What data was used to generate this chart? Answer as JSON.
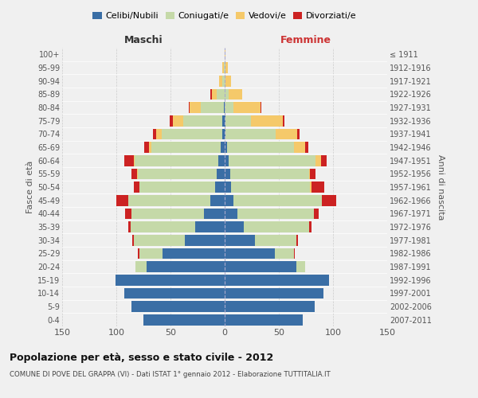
{
  "age_groups": [
    "0-4",
    "5-9",
    "10-14",
    "15-19",
    "20-24",
    "25-29",
    "30-34",
    "35-39",
    "40-44",
    "45-49",
    "50-54",
    "55-59",
    "60-64",
    "65-69",
    "70-74",
    "75-79",
    "80-84",
    "85-89",
    "90-94",
    "95-99",
    "100+"
  ],
  "birth_years": [
    "2007-2011",
    "2002-2006",
    "1997-2001",
    "1992-1996",
    "1987-1991",
    "1982-1986",
    "1977-1981",
    "1972-1976",
    "1967-1971",
    "1962-1966",
    "1957-1961",
    "1952-1956",
    "1947-1951",
    "1942-1946",
    "1937-1941",
    "1932-1936",
    "1927-1931",
    "1922-1926",
    "1917-1921",
    "1912-1916",
    "≤ 1911"
  ],
  "male_celibi": [
    75,
    86,
    93,
    101,
    72,
    57,
    37,
    27,
    19,
    13,
    9,
    7,
    6,
    4,
    2,
    2,
    1,
    0,
    0,
    0,
    0
  ],
  "male_coniugati": [
    0,
    0,
    0,
    0,
    10,
    22,
    47,
    60,
    67,
    76,
    70,
    73,
    77,
    64,
    56,
    36,
    21,
    7,
    2,
    1,
    0
  ],
  "male_vedovi": [
    0,
    0,
    0,
    0,
    0,
    0,
    0,
    0,
    0,
    0,
    0,
    1,
    1,
    2,
    5,
    10,
    10,
    5,
    3,
    1,
    0
  ],
  "male_divorziati": [
    0,
    0,
    0,
    0,
    0,
    1,
    1,
    2,
    6,
    11,
    5,
    5,
    9,
    4,
    3,
    3,
    1,
    1,
    0,
    0,
    0
  ],
  "female_nubili": [
    72,
    83,
    91,
    96,
    66,
    46,
    28,
    18,
    12,
    8,
    6,
    5,
    4,
    2,
    1,
    1,
    0,
    0,
    0,
    0,
    0
  ],
  "female_coniugate": [
    0,
    0,
    0,
    0,
    8,
    18,
    38,
    60,
    70,
    82,
    73,
    73,
    80,
    62,
    46,
    23,
    8,
    4,
    1,
    1,
    0
  ],
  "female_vedove": [
    0,
    0,
    0,
    0,
    0,
    0,
    0,
    0,
    0,
    0,
    1,
    1,
    5,
    10,
    20,
    30,
    25,
    12,
    5,
    2,
    1
  ],
  "female_divorziate": [
    0,
    0,
    0,
    0,
    0,
    1,
    2,
    2,
    5,
    13,
    12,
    5,
    5,
    3,
    2,
    1,
    1,
    0,
    0,
    0,
    0
  ],
  "colors": {
    "celibi": "#3a6ea5",
    "coniugati": "#c5d9a8",
    "vedovi": "#f5c96a",
    "divorziati": "#cc2222"
  },
  "xlim": 150,
  "title1": "Popolazione per età, sesso e stato civile - 2012",
  "title2": "COMUNE DI POVE DEL GRAPPA (VI) - Dati ISTAT 1° gennaio 2012 - Elaborazione TUTTITALIA.IT",
  "xlabel_left": "Maschi",
  "xlabel_right": "Femmine",
  "ylabel_left": "Fasce di età",
  "ylabel_right": "Anni di nascita",
  "legend_labels": [
    "Celibi/Nubili",
    "Coniugati/e",
    "Vedovi/e",
    "Divorziati/e"
  ],
  "bg_color": "#f0f0f0"
}
